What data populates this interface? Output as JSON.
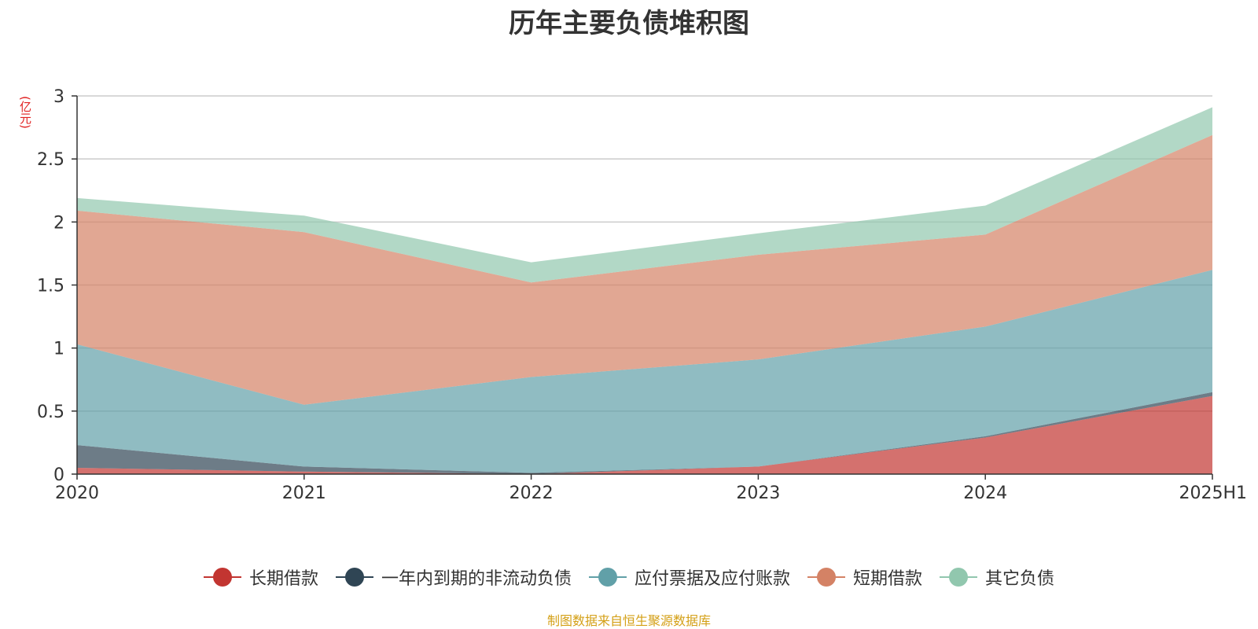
{
  "chart_data": {
    "type": "area",
    "stacked": true,
    "title": "历年主要负债堆积图",
    "unit_label": "(亿元)",
    "categories": [
      "2020",
      "2021",
      "2022",
      "2023",
      "2024",
      "2025H1"
    ],
    "ylim": [
      0,
      3
    ],
    "yticks": [
      "0",
      "0.5",
      "1",
      "1.5",
      "2",
      "2.5",
      "3"
    ],
    "grid": true,
    "legend_position": "bottom",
    "series": [
      {
        "name": "长期借款",
        "color": "#c23531",
        "values": [
          0.05,
          0.02,
          0.0,
          0.06,
          0.29,
          0.62
        ]
      },
      {
        "name": "一年内到期的非流动负债",
        "color": "#2f4554",
        "values": [
          0.18,
          0.04,
          0.01,
          0.0,
          0.01,
          0.03
        ]
      },
      {
        "name": "应付票据及应付账款",
        "color": "#61a0a8",
        "values": [
          0.8,
          0.49,
          0.76,
          0.85,
          0.87,
          0.97
        ]
      },
      {
        "name": "短期借款",
        "color": "#d48265",
        "values": [
          1.06,
          1.37,
          0.75,
          0.83,
          0.73,
          1.07
        ]
      },
      {
        "name": "其它负债",
        "color": "#91c7ae",
        "values": [
          0.1,
          0.13,
          0.16,
          0.17,
          0.23,
          0.22
        ]
      }
    ],
    "source_note": "制图数据来自恒生聚源数据库"
  }
}
